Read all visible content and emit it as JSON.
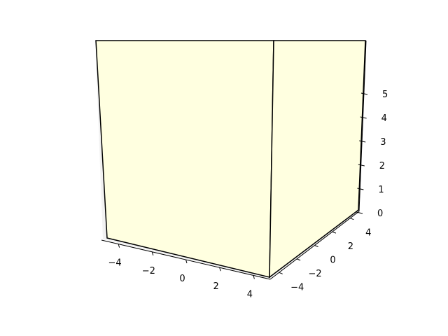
{
  "chart_data": {
    "type": "bar3d",
    "title": "",
    "xlabel": "",
    "ylabel": "",
    "zlabel": "",
    "xlim": [
      -5,
      5
    ],
    "ylim": [
      -5,
      5
    ],
    "zlim": [
      0,
      5
    ],
    "x_ticks": [
      "−4",
      "−2",
      "0",
      "2",
      "4"
    ],
    "y_ticks": [
      "−4",
      "−2",
      "0",
      "2",
      "4"
    ],
    "z_ticks": [
      "0",
      "1",
      "2",
      "3",
      "4",
      "5"
    ],
    "bars": [
      {
        "x": [
          -5,
          5
        ],
        "y": [
          -5,
          5
        ],
        "z_base": 0,
        "height": 5,
        "color": "#ffffe0"
      }
    ],
    "bar_edge_color": "#000000",
    "grid": true
  }
}
